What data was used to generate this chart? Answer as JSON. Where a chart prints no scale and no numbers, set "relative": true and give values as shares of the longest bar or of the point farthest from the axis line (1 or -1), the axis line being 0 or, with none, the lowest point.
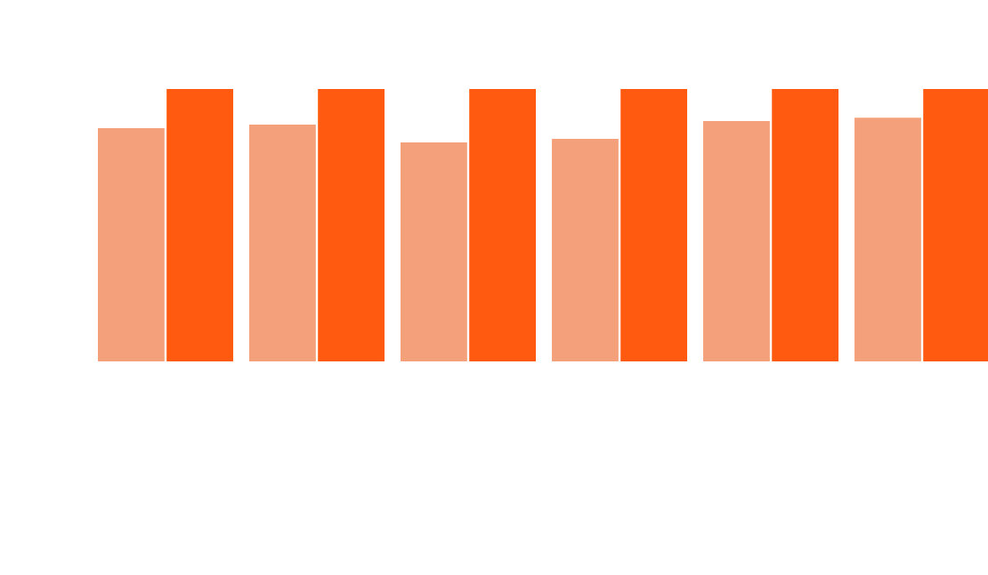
{
  "chart_data": {
    "type": "bar",
    "relative": true,
    "categories": [
      null,
      null,
      null,
      null,
      null,
      null
    ],
    "series": [
      {
        "color": "#f4a07a",
        "values": [
          0.856,
          0.869,
          0.804,
          0.817,
          0.882,
          0.895
        ]
      },
      {
        "color": "#ff5a10",
        "values": [
          1,
          1,
          1,
          1,
          1,
          1
        ]
      }
    ]
  }
}
